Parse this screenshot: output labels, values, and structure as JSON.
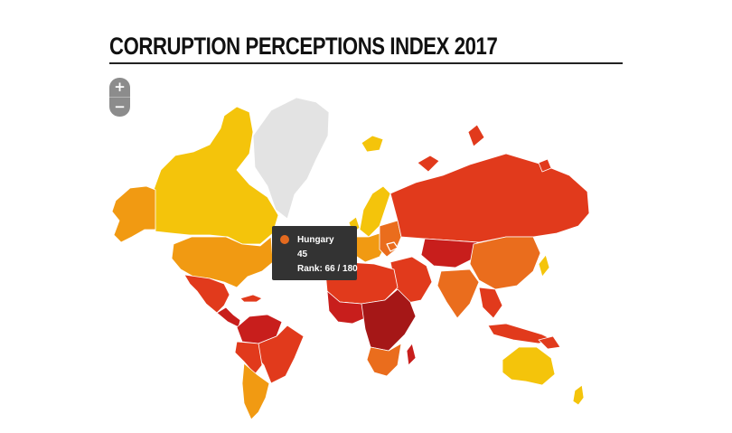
{
  "title": "CORRUPTION PERCEPTIONS INDEX 2017",
  "zoom": {
    "in_label": "+",
    "out_label": "−"
  },
  "tooltip": {
    "country": "Hungary",
    "score": "45",
    "rank_text": "Rank: 66 / 180",
    "dot_color": "#e46a1f"
  },
  "colors": {
    "clean": "#f4c40b",
    "high": "#f19a12",
    "mid": "#ea6d1d",
    "low": "#e13a1c",
    "lowest": "#c81e1c",
    "very_low": "#a51717",
    "no_data": "#e3e3e3",
    "tooltip_bg": "#333333",
    "zoom_bg": "#8c8c8c"
  }
}
